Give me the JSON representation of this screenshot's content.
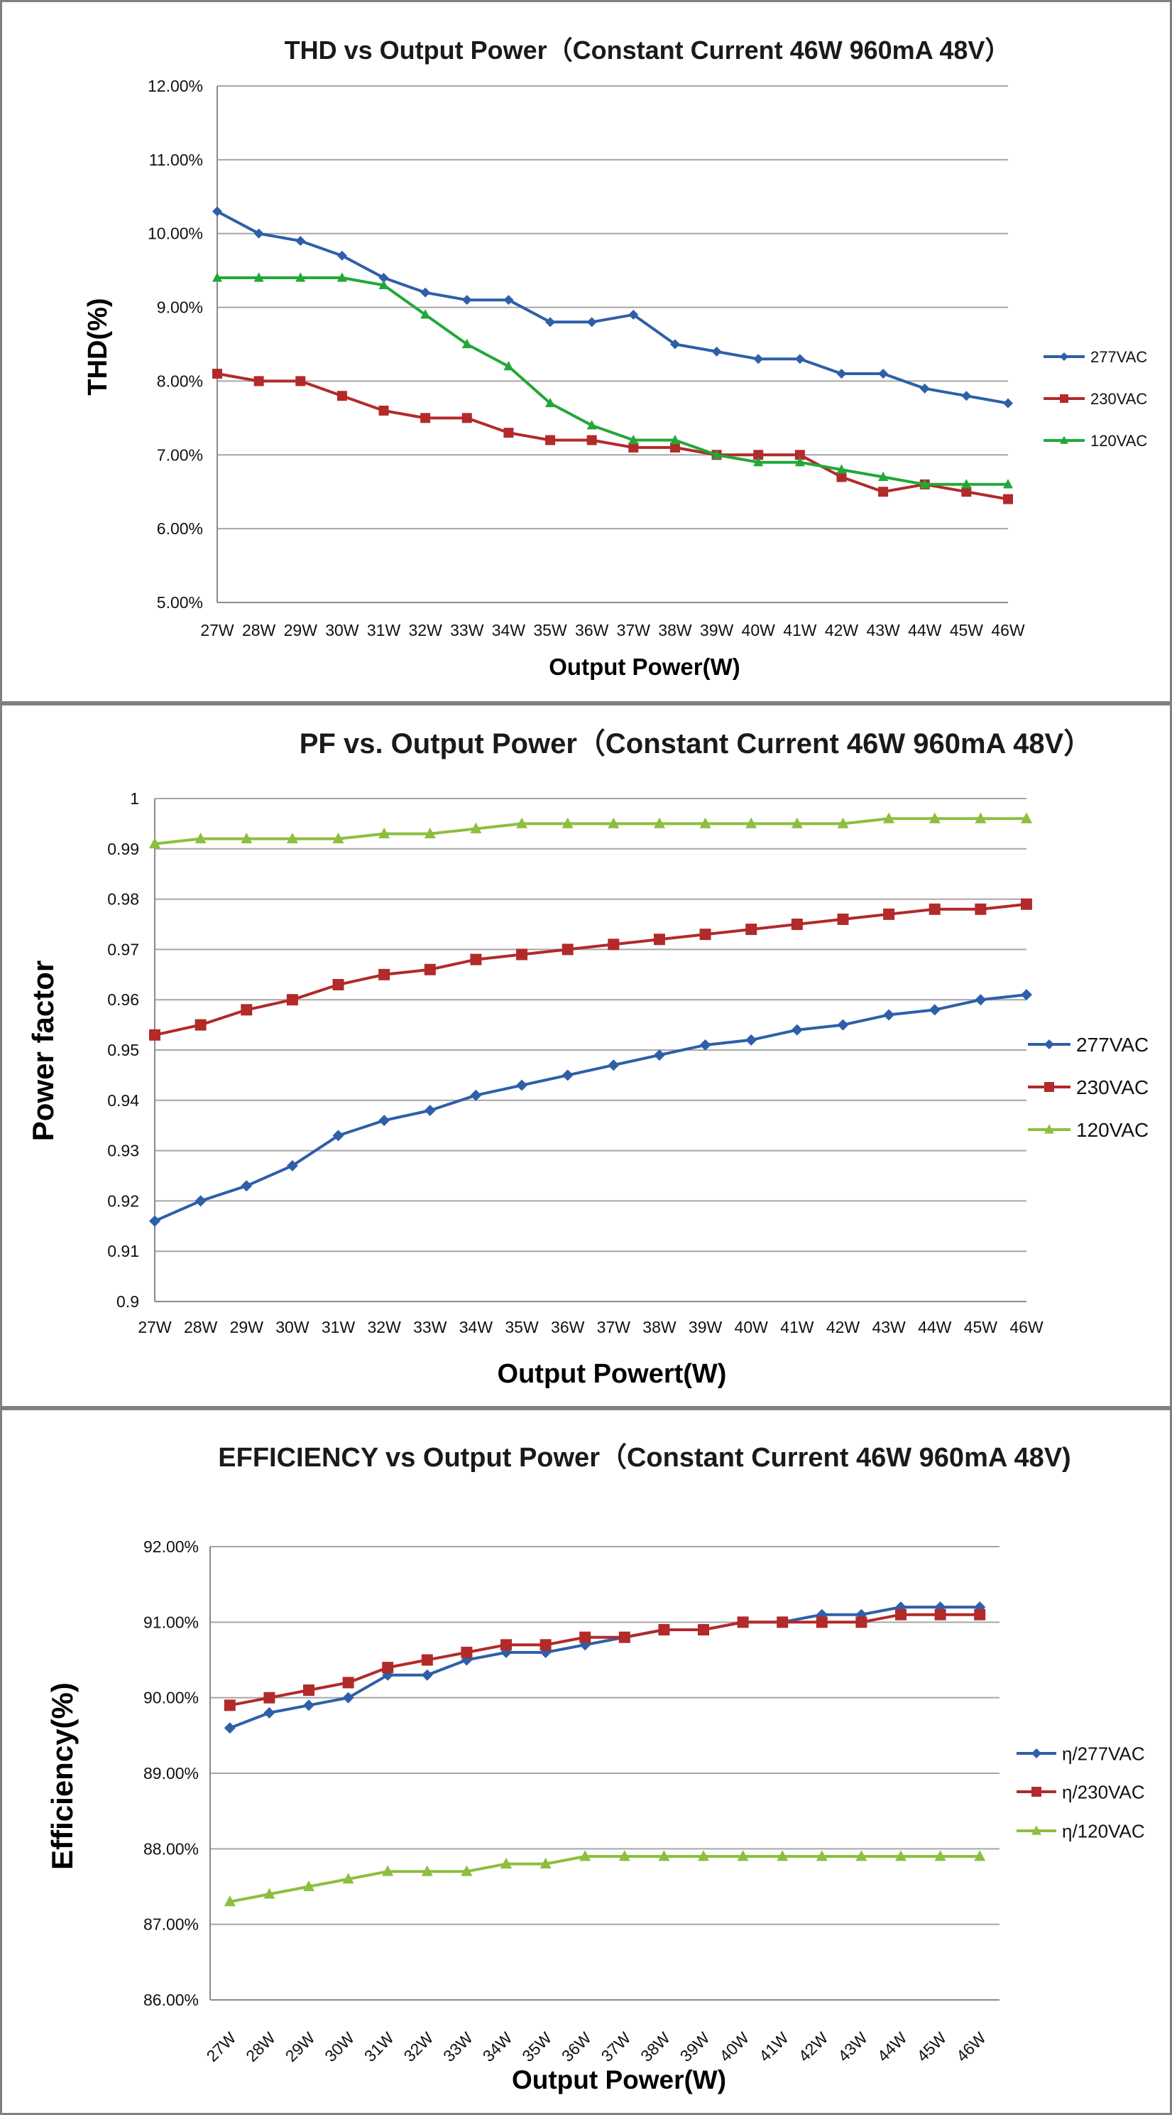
{
  "chart_data": [
    {
      "type": "line",
      "title": "THD vs Output Power（Constant Current 46W  960mA 48V）",
      "xlabel": "Output Power(W)",
      "ylabel": "THD(%)",
      "categories": [
        "27W",
        "28W",
        "29W",
        "30W",
        "31W",
        "32W",
        "33W",
        "34W",
        "35W",
        "36W",
        "37W",
        "38W",
        "39W",
        "40W",
        "41W",
        "42W",
        "43W",
        "44W",
        "45W",
        "46W"
      ],
      "ylim": [
        5.0,
        12.0
      ],
      "yticks": [
        "5.00%",
        "6.00%",
        "7.00%",
        "8.00%",
        "9.00%",
        "10.00%",
        "11.00%",
        "12.00%"
      ],
      "grid": true,
      "legend_position": "right",
      "series": [
        {
          "name": "277VAC",
          "color": "#2e5fa8",
          "marker": "diamond",
          "values": [
            10.3,
            10.0,
            9.9,
            9.7,
            9.4,
            9.2,
            9.1,
            9.1,
            8.8,
            8.8,
            8.9,
            8.5,
            8.4,
            8.3,
            8.3,
            8.1,
            8.1,
            7.9,
            7.8,
            7.7
          ]
        },
        {
          "name": "230VAC",
          "color": "#b22a2a",
          "marker": "square",
          "values": [
            8.1,
            8.0,
            8.0,
            7.8,
            7.6,
            7.5,
            7.5,
            7.3,
            7.2,
            7.2,
            7.1,
            7.1,
            7.0,
            7.0,
            7.0,
            6.7,
            6.5,
            6.6,
            6.5,
            6.4
          ]
        },
        {
          "name": "120VAC",
          "color": "#22a838",
          "marker": "triangle",
          "values": [
            9.4,
            9.4,
            9.4,
            9.4,
            9.3,
            8.9,
            8.5,
            8.2,
            7.7,
            7.4,
            7.2,
            7.2,
            7.0,
            6.9,
            6.9,
            6.8,
            6.7,
            6.6,
            6.6,
            6.6
          ]
        }
      ]
    },
    {
      "type": "line",
      "title": "PF vs. Output Power（Constant Current 46W 960mA 48V）",
      "xlabel": "Output Powert(W)",
      "ylabel": "Power factor",
      "categories": [
        "27W",
        "28W",
        "29W",
        "30W",
        "31W",
        "32W",
        "33W",
        "34W",
        "35W",
        "36W",
        "37W",
        "38W",
        "39W",
        "40W",
        "41W",
        "42W",
        "43W",
        "44W",
        "45W",
        "46W"
      ],
      "ylim": [
        0.9,
        1.0
      ],
      "yticks": [
        "0.9",
        "0.91",
        "0.92",
        "0.93",
        "0.94",
        "0.95",
        "0.96",
        "0.97",
        "0.98",
        "0.99",
        "1"
      ],
      "grid": true,
      "legend_position": "right",
      "series": [
        {
          "name": "277VAC",
          "color": "#2e5fa8",
          "marker": "diamond",
          "values": [
            0.916,
            0.92,
            0.923,
            0.927,
            0.933,
            0.936,
            0.938,
            0.941,
            0.943,
            0.945,
            0.947,
            0.949,
            0.951,
            0.952,
            0.954,
            0.955,
            0.957,
            0.958,
            0.96,
            0.961
          ]
        },
        {
          "name": "230VAC",
          "color": "#b22a2a",
          "marker": "square",
          "values": [
            0.953,
            0.955,
            0.958,
            0.96,
            0.963,
            0.965,
            0.966,
            0.968,
            0.969,
            0.97,
            0.971,
            0.972,
            0.973,
            0.974,
            0.975,
            0.976,
            0.977,
            0.978,
            0.978,
            0.979
          ]
        },
        {
          "name": "120VAC",
          "color": "#8cbf3f",
          "marker": "triangle",
          "values": [
            0.991,
            0.992,
            0.992,
            0.992,
            0.992,
            0.993,
            0.993,
            0.994,
            0.995,
            0.995,
            0.995,
            0.995,
            0.995,
            0.995,
            0.995,
            0.995,
            0.996,
            0.996,
            0.996,
            0.996
          ]
        }
      ]
    },
    {
      "type": "line",
      "title": "EFFICIENCY vs Output Power（Constant Current 46W 960mA 48V)",
      "xlabel": "Output Power(W)",
      "ylabel": "Efficiency(%)",
      "categories": [
        "27W",
        "28W",
        "29W",
        "30W",
        "31W",
        "32W",
        "33W",
        "34W",
        "35W",
        "36W",
        "37W",
        "38W",
        "39W",
        "40W",
        "41W",
        "42W",
        "43W",
        "44W",
        "45W",
        "46W"
      ],
      "ylim": [
        86.0,
        92.0
      ],
      "yticks": [
        "86.00%",
        "87.00%",
        "88.00%",
        "89.00%",
        "90.00%",
        "91.00%",
        "92.00%"
      ],
      "grid": true,
      "legend_position": "right",
      "series": [
        {
          "name": "η/277VAC",
          "color": "#2e5fa8",
          "marker": "diamond",
          "values": [
            89.6,
            89.8,
            89.9,
            90.0,
            90.3,
            90.3,
            90.5,
            90.6,
            90.6,
            90.7,
            90.8,
            90.9,
            90.9,
            91.0,
            91.0,
            91.1,
            91.1,
            91.2,
            91.2,
            91.2
          ]
        },
        {
          "name": "η/230VAC",
          "color": "#b22a2a",
          "marker": "square",
          "values": [
            89.9,
            90.0,
            90.1,
            90.2,
            90.4,
            90.5,
            90.6,
            90.7,
            90.7,
            90.8,
            90.8,
            90.9,
            90.9,
            91.0,
            91.0,
            91.0,
            91.0,
            91.1,
            91.1,
            91.1
          ]
        },
        {
          "name": "η/120VAC",
          "color": "#8cbf3f",
          "marker": "triangle",
          "values": [
            87.3,
            87.4,
            87.5,
            87.6,
            87.7,
            87.7,
            87.7,
            87.8,
            87.8,
            87.9,
            87.9,
            87.9,
            87.9,
            87.9,
            87.9,
            87.9,
            87.9,
            87.9,
            87.9,
            87.9
          ]
        }
      ]
    }
  ]
}
